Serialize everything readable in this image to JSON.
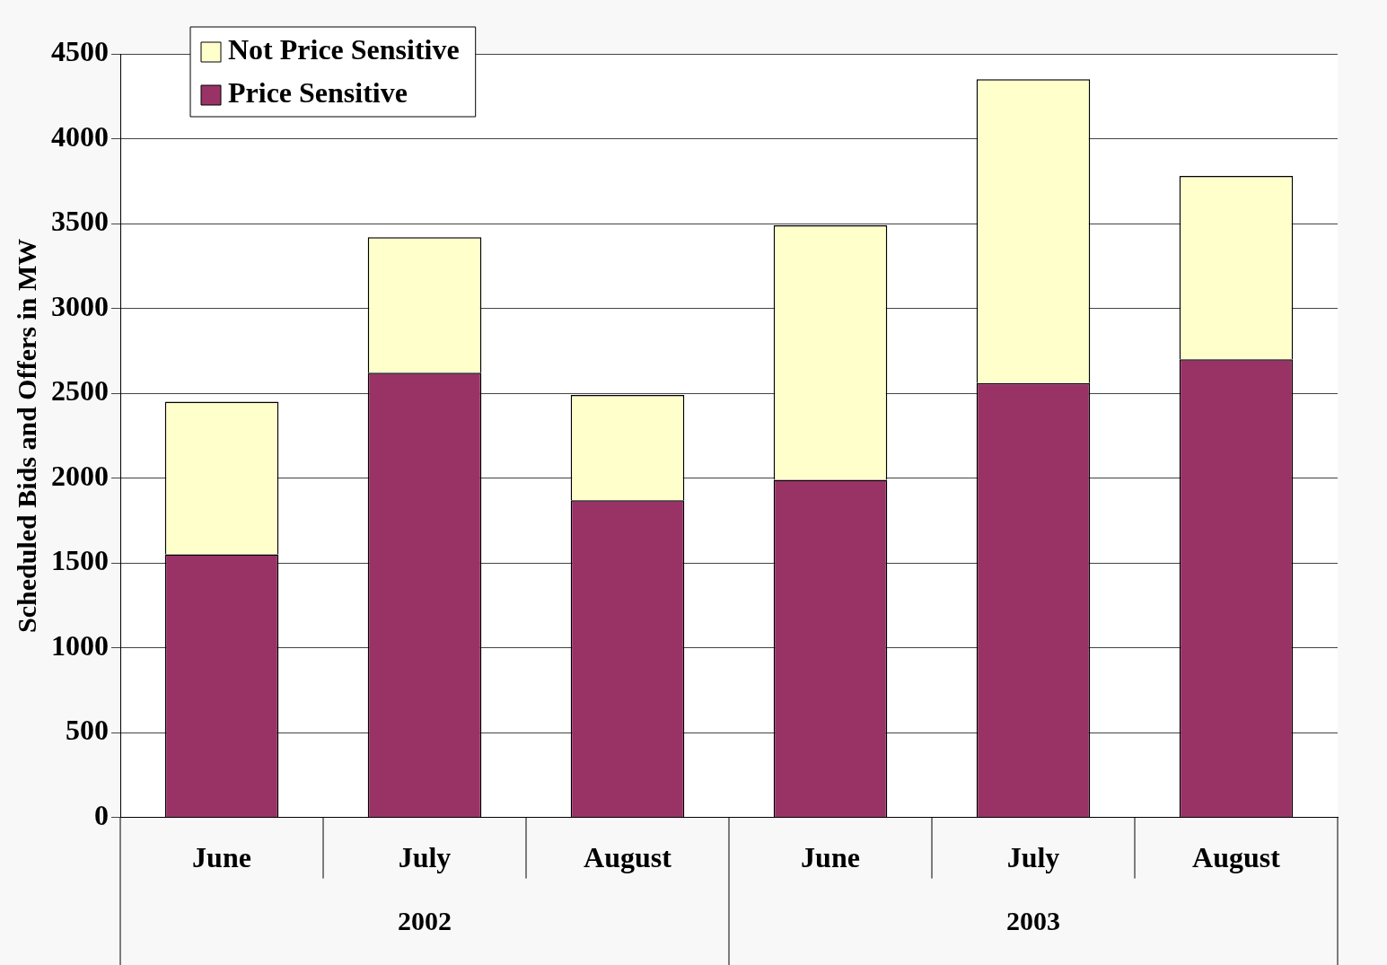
{
  "chart_data": {
    "type": "bar",
    "stacked": true,
    "ylabel": "Scheduled Bids and Offers in MW",
    "categories": [
      "June",
      "July",
      "August",
      "June",
      "July",
      "August"
    ],
    "series": [
      {
        "name": "Price Sensitive",
        "color": "#993366",
        "values": [
          1550,
          2620,
          1870,
          1990,
          2560,
          2700
        ]
      },
      {
        "name": "Not Price Sensitive",
        "color": "#ffffcc",
        "values": [
          900,
          800,
          620,
          1500,
          1790,
          1080
        ]
      }
    ],
    "annotations": [
      "2002",
      "2003"
    ],
    "ylim": [
      0,
      4500
    ],
    "yticks": [
      0,
      500,
      1000,
      1500,
      2000,
      2500,
      3000,
      3500,
      4000,
      4500
    ],
    "grid": "y",
    "legend": "top left"
  }
}
